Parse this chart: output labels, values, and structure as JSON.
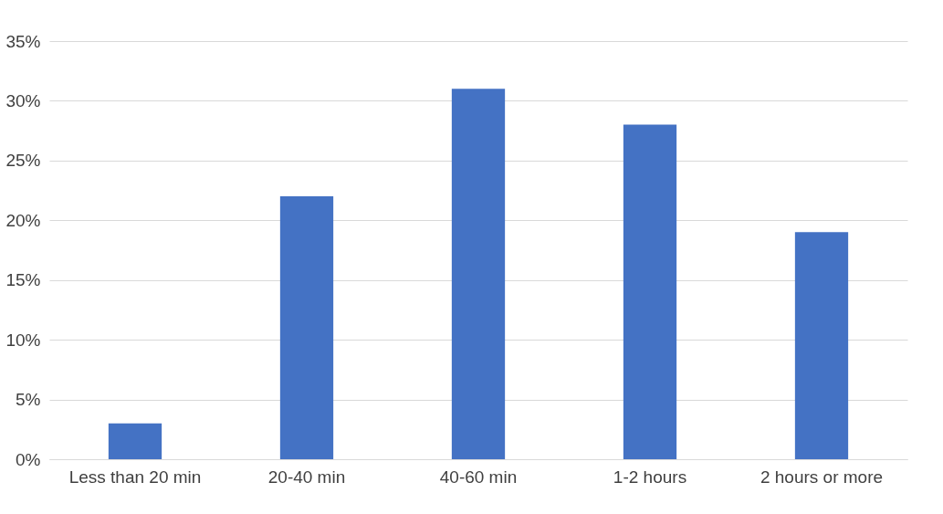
{
  "chart_data": {
    "type": "bar",
    "categories": [
      "Less than 20 min",
      "20-40 min",
      "40-60 min",
      "1-2 hours",
      "2 hours or more"
    ],
    "values": [
      3,
      22,
      31,
      28,
      19
    ],
    "color": "#4472c4",
    "ylim": [
      0,
      35
    ],
    "yticks": [
      {
        "value": 0,
        "label": "0%"
      },
      {
        "value": 5,
        "label": "5%"
      },
      {
        "value": 10,
        "label": "10%"
      },
      {
        "value": 15,
        "label": "15%"
      },
      {
        "value": 20,
        "label": "20%"
      },
      {
        "value": 25,
        "label": "25%"
      },
      {
        "value": 30,
        "label": "30%"
      },
      {
        "value": 35,
        "label": "35%"
      }
    ],
    "grid": "y"
  }
}
